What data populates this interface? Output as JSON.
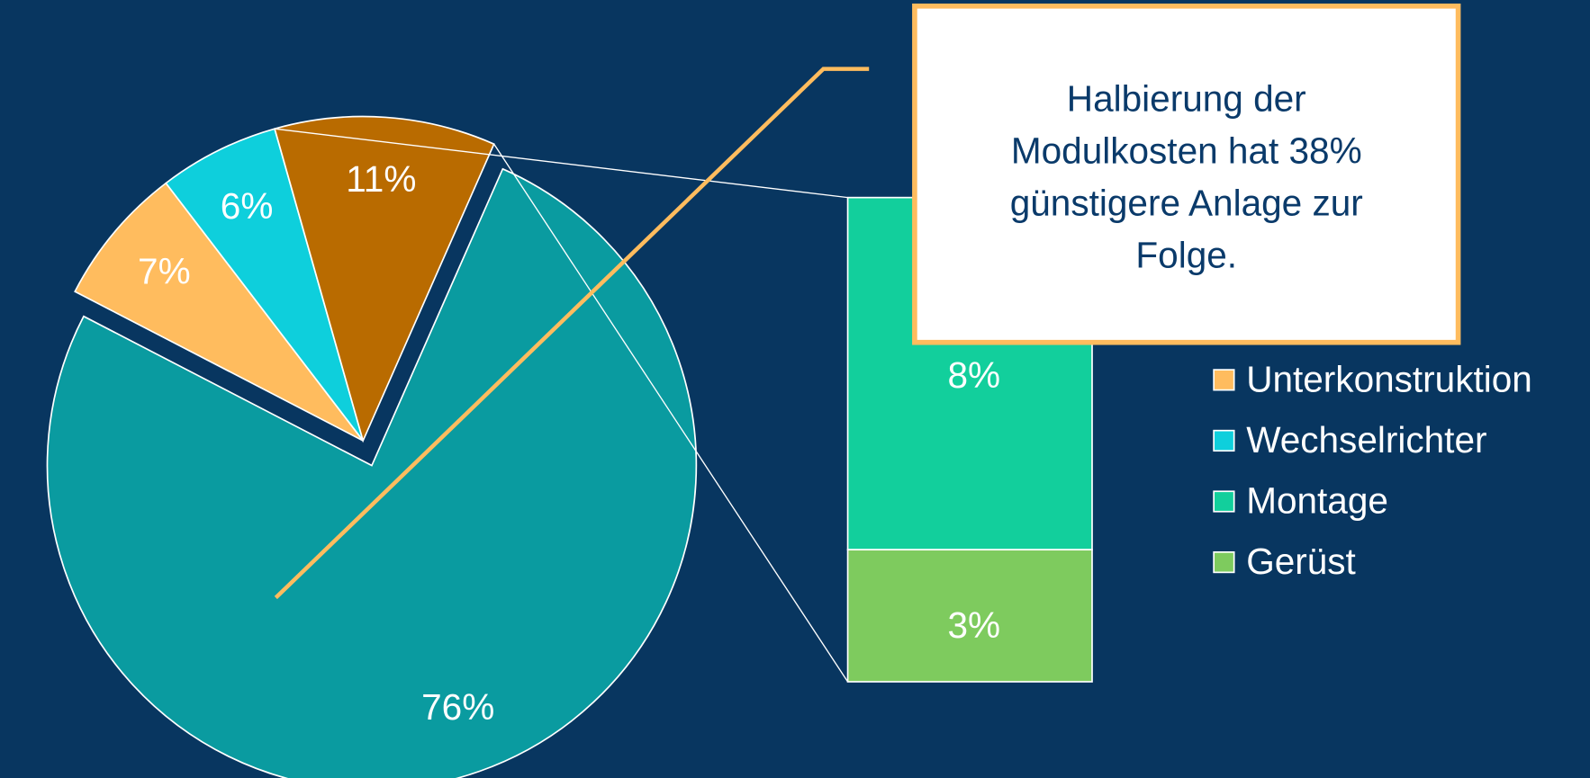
{
  "chart_data": {
    "type": "bar-of-pie",
    "categories": [
      null,
      "Unterkonstruktion",
      "Wechselrichter",
      null
    ],
    "values": [
      76,
      7,
      6,
      11
    ],
    "value_labels": [
      "76%",
      "7%",
      "6%",
      "11%"
    ],
    "colors": [
      "#0a9ba0",
      "#ffbc5e",
      "#0ecfdc",
      "#b96b00"
    ],
    "secondary": {
      "categories": [
        "Montage",
        "Gerüst"
      ],
      "values": [
        8,
        3
      ],
      "value_labels": [
        "8%",
        "3%"
      ],
      "colors": [
        "#12cf9c",
        "#7ecb5e"
      ]
    },
    "annotation": [
      "Halbierung der",
      "Modulkosten hat 38%",
      "günstigere Anlage zur",
      "Folge."
    ]
  }
}
